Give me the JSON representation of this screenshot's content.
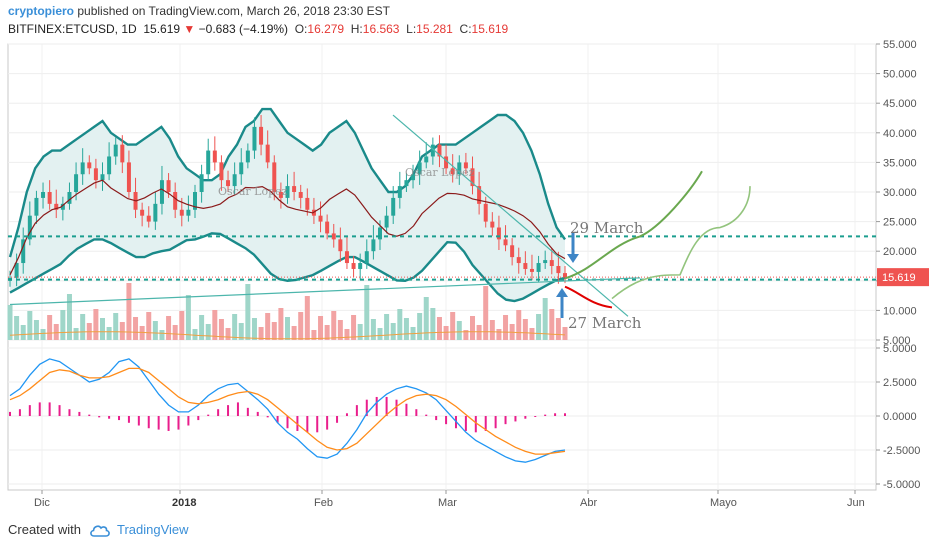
{
  "header": {
    "author": "cryptopiero",
    "published": "published on TradingView.com, March 26, 2018 23:30 EST"
  },
  "symbol": {
    "name": "BITFINEX:ETCUSD, 1D",
    "last": "15.619",
    "change": "−0.683 (−4.19%)",
    "o_label": "O:",
    "o": "16.279",
    "h_label": "H:",
    "h": "16.563",
    "l_label": "L:",
    "l": "15.281",
    "c_label": "C:",
    "c": "15.619"
  },
  "footer": {
    "created_with": "Created with",
    "brand": "TradingView",
    "brand_icon": "tradingview-cloud-icon"
  },
  "colors": {
    "up": "#26a69a",
    "down": "#ef5350",
    "band": "#1a8a8a",
    "ma": "#8b1a1a",
    "macd": "#2196f3",
    "signal": "#ff8c1a",
    "hist": "#e91e8c",
    "level": "#1b9e8f",
    "price_tag": "#ef5350"
  },
  "chart_data": [
    {
      "type": "candlestick",
      "title": "",
      "y_axis_labels": [
        "5.000",
        "10.000",
        "15.000",
        "20.000",
        "25.000",
        "30.000",
        "35.000",
        "40.000",
        "45.000",
        "50.000",
        "55.000"
      ],
      "ylim": [
        5,
        55
      ],
      "x_axis_labels": [
        "Dic",
        "2018",
        "Feb",
        "Mar",
        "Abr",
        "Mayo",
        "Jun"
      ],
      "last_price_label": "15.619",
      "close_series_approx": [
        15.5,
        18,
        22,
        26,
        29,
        30,
        28,
        27,
        28,
        30,
        33,
        35,
        34,
        32,
        33,
        36,
        38,
        35,
        30,
        27,
        26,
        25,
        28,
        32,
        30,
        27,
        26,
        27,
        30,
        33,
        37,
        35,
        32,
        31,
        33,
        35,
        37,
        41,
        38,
        35,
        30,
        29,
        31,
        30,
        29,
        27,
        26,
        25,
        23,
        22,
        20,
        18,
        17,
        18,
        20,
        22,
        24,
        26,
        29,
        31,
        32,
        33,
        35,
        36,
        38,
        36,
        34,
        33,
        35,
        34,
        31,
        28,
        25,
        24,
        22,
        21,
        19,
        18,
        17,
        16.5,
        18,
        18.5,
        17.5,
        16.3,
        15.6
      ],
      "bollinger_upper_approx": [
        19,
        24,
        30,
        34,
        36,
        37,
        37,
        38,
        39,
        40,
        41,
        42,
        40,
        39,
        38,
        38,
        39,
        40,
        41,
        39,
        36,
        34,
        33,
        32,
        32,
        33,
        36,
        38,
        41,
        42,
        44,
        44,
        42,
        40,
        39,
        38,
        37,
        38,
        40,
        41,
        42,
        40,
        37,
        34,
        32,
        30,
        30,
        31,
        33,
        36,
        37,
        38,
        38,
        38,
        39,
        40,
        41,
        42,
        43,
        43,
        42,
        40,
        37,
        33,
        28,
        24,
        22
      ],
      "bollinger_lower_approx": [
        13,
        14,
        15,
        16,
        17,
        18,
        20,
        21,
        22,
        22,
        21,
        20,
        19,
        19,
        20,
        20,
        21,
        22,
        22,
        23,
        23,
        22,
        21,
        20,
        18,
        16,
        15,
        15,
        15.5,
        16,
        17,
        18,
        19,
        19,
        18,
        17,
        16,
        15,
        15,
        16,
        18,
        20,
        22,
        21,
        18,
        16,
        14,
        12,
        11.5,
        12,
        13,
        14,
        15,
        15.5
      ],
      "annotations": [
        "29 March",
        "27 March",
        "Oscar Lopez"
      ],
      "horizontal_levels": [
        22.5,
        15.2
      ],
      "volume_note": "volume bars shown at bottom of price pane"
    },
    {
      "type": "line",
      "title": "",
      "y_axis_labels": [
        "5.0000",
        "2.5000",
        "0.0000",
        "-2.5000",
        "-5.0000"
      ],
      "ylim": [
        -5,
        5
      ],
      "series": [
        {
          "values": [
            1.5,
            2,
            3,
            3.8,
            4.2,
            4,
            3.5,
            3,
            2.5,
            2.7,
            3.2,
            4,
            4.2,
            3.6,
            2.6,
            1.6,
            0.8,
            0.3,
            0.3,
            0.8,
            1.5,
            2,
            2.3,
            2.4,
            1.8,
            1.2,
            0.5,
            -0.5,
            -1.2,
            -1.7,
            -2.4,
            -3,
            -3.1,
            -2.8,
            -2,
            -1,
            0.2,
            1,
            1.6,
            2,
            2.2,
            2,
            1.7,
            1.2,
            0.4,
            -0.4,
            -1.2,
            -1.8,
            -2.2,
            -2.6,
            -3,
            -3.3,
            -3.4,
            -3.2,
            -2.9,
            -2.6,
            -2.5
          ]
        },
        {
          "values": [
            1.2,
            1.5,
            2,
            2.6,
            3.2,
            3.4,
            3.3,
            3,
            2.8,
            2.8,
            2.9,
            3.2,
            3.5,
            3.5,
            3.2,
            2.6,
            2,
            1.4,
            1,
            0.9,
            1,
            1.2,
            1.5,
            1.7,
            1.8,
            1.6,
            1.2,
            0.6,
            0,
            -0.6,
            -1.2,
            -1.8,
            -2.3,
            -2.5,
            -2.4,
            -2,
            -1.3,
            -0.6,
            0.1,
            0.7,
            1.2,
            1.5,
            1.6,
            1.5,
            1.2,
            0.7,
            0.1,
            -0.5,
            -1,
            -1.5,
            -1.9,
            -2.3,
            -2.6,
            -2.8,
            -2.8,
            -2.7,
            -2.6
          ]
        }
      ],
      "histogram_values": [
        0.3,
        0.5,
        0.8,
        1,
        1,
        0.8,
        0.5,
        0.3,
        0.1,
        -0.1,
        -0.2,
        -0.3,
        -0.5,
        -0.7,
        -0.9,
        -1,
        -1.1,
        -1,
        -0.7,
        -0.3,
        0.1,
        0.5,
        0.8,
        1,
        0.6,
        0.3,
        -0.1,
        -0.5,
        -0.9,
        -1.1,
        -1.2,
        -1.2,
        -1,
        -0.5,
        0.2,
        0.8,
        1.2,
        1.4,
        1.4,
        1.2,
        0.9,
        0.5,
        0.1,
        -0.3,
        -0.6,
        -0.9,
        -1.1,
        -1.2,
        -1.1,
        -0.9,
        -0.6,
        -0.4,
        -0.2,
        0,
        0.1,
        0.2,
        0.2
      ]
    }
  ]
}
